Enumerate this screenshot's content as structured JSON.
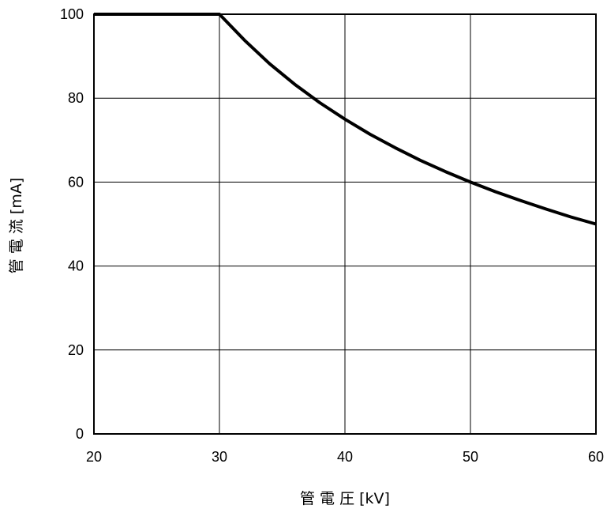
{
  "chart_data": {
    "type": "line",
    "xlabel": "管 電 圧 [kV]",
    "ylabel": "管 電 流 [mA]",
    "xlim": [
      20,
      60
    ],
    "ylim": [
      0,
      100
    ],
    "x_ticks": [
      20,
      30,
      40,
      50,
      60
    ],
    "y_ticks": [
      0,
      20,
      40,
      60,
      80,
      100
    ],
    "grid": true,
    "series": [
      {
        "x": [
          20,
          30,
          32,
          34,
          36,
          38,
          40,
          42,
          44,
          46,
          48,
          50,
          52,
          54,
          56,
          58,
          60
        ],
        "y": [
          100,
          100,
          93.8,
          88.2,
          83.3,
          78.9,
          75,
          71.4,
          68.2,
          65.2,
          62.5,
          60,
          57.7,
          55.6,
          53.6,
          51.7,
          50
        ]
      }
    ]
  }
}
